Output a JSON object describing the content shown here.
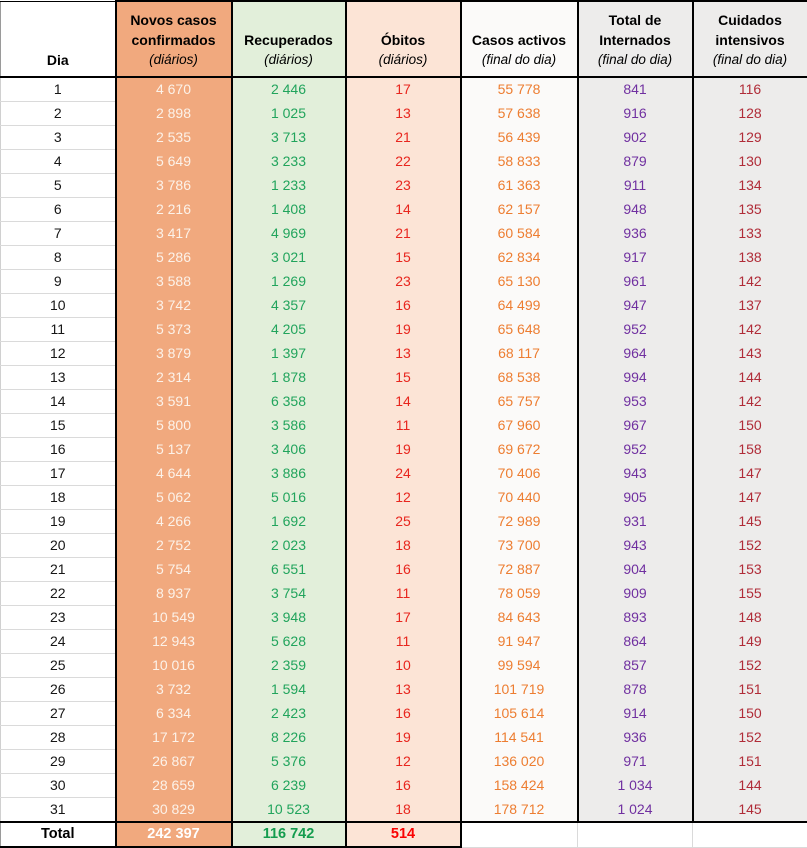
{
  "table": {
    "day_header": "Dia",
    "total_label": "Total",
    "columns": [
      {
        "title": "Novos casos confirmados",
        "subtitle": "(diários)"
      },
      {
        "title": "Recuperados",
        "subtitle": "(diários)"
      },
      {
        "title": "Óbitos",
        "subtitle": "(diários)"
      },
      {
        "title": "Casos activos",
        "subtitle": "(final do dia)"
      },
      {
        "title": "Total de Internados",
        "subtitle": "(final do dia)"
      },
      {
        "title": "Cuidados intensivos",
        "subtitle": "(final do dia)"
      }
    ]
  },
  "colors": {
    "new_cases_fill": "#F1A97E",
    "new_cases_text": "#FCF2E9",
    "recovered_fill": "#E2EFDA",
    "recovered_text": "#21A45C",
    "deaths_fill": "#FCE4D6",
    "deaths_text": "#E8261E",
    "deaths_total_text": "#FA0202",
    "active_cases_fill": "#FBFAF9",
    "active_cases_text": "#ED7D31",
    "hospitalized_fill": "#EDECEB",
    "hospitalized_text": "#7030A0",
    "icu_fill": "#EDECEB",
    "icu_text": "#B02C38",
    "border": "#000000",
    "gridline": "#DADADA"
  },
  "chart_data": {
    "type": "table",
    "columns": [
      "Dia",
      "Novos casos confirmados (diários)",
      "Recuperados (diários)",
      "Óbitos (diários)",
      "Casos activos (final do dia)",
      "Total de Internados (final do dia)",
      "Cuidados intensivos (final do dia)"
    ],
    "rows": [
      [
        1,
        4670,
        2446,
        17,
        55778,
        841,
        116
      ],
      [
        2,
        2898,
        1025,
        13,
        57638,
        916,
        128
      ],
      [
        3,
        2535,
        3713,
        21,
        56439,
        902,
        129
      ],
      [
        4,
        5649,
        3233,
        22,
        58833,
        879,
        130
      ],
      [
        5,
        3786,
        1233,
        23,
        61363,
        911,
        134
      ],
      [
        6,
        2216,
        1408,
        14,
        62157,
        948,
        135
      ],
      [
        7,
        3417,
        4969,
        21,
        60584,
        936,
        133
      ],
      [
        8,
        5286,
        3021,
        15,
        62834,
        917,
        138
      ],
      [
        9,
        3588,
        1269,
        23,
        65130,
        961,
        142
      ],
      [
        10,
        3742,
        4357,
        16,
        64499,
        947,
        137
      ],
      [
        11,
        5373,
        4205,
        19,
        65648,
        952,
        142
      ],
      [
        12,
        3879,
        1397,
        13,
        68117,
        964,
        143
      ],
      [
        13,
        2314,
        1878,
        15,
        68538,
        994,
        144
      ],
      [
        14,
        3591,
        6358,
        14,
        65757,
        953,
        142
      ],
      [
        15,
        5800,
        3586,
        11,
        67960,
        967,
        150
      ],
      [
        16,
        5137,
        3406,
        19,
        69672,
        952,
        158
      ],
      [
        17,
        4644,
        3886,
        24,
        70406,
        943,
        147
      ],
      [
        18,
        5062,
        5016,
        12,
        70440,
        905,
        147
      ],
      [
        19,
        4266,
        1692,
        25,
        72989,
        931,
        145
      ],
      [
        20,
        2752,
        2023,
        18,
        73700,
        943,
        152
      ],
      [
        21,
        5754,
        6551,
        16,
        72887,
        904,
        153
      ],
      [
        22,
        8937,
        3754,
        11,
        78059,
        909,
        155
      ],
      [
        23,
        10549,
        3948,
        17,
        84643,
        893,
        148
      ],
      [
        24,
        12943,
        5628,
        11,
        91947,
        864,
        149
      ],
      [
        25,
        10016,
        2359,
        10,
        99594,
        857,
        152
      ],
      [
        26,
        3732,
        1594,
        13,
        101719,
        878,
        151
      ],
      [
        27,
        6334,
        2423,
        16,
        105614,
        914,
        150
      ],
      [
        28,
        17172,
        8226,
        19,
        114541,
        936,
        152
      ],
      [
        29,
        26867,
        5376,
        12,
        136020,
        971,
        151
      ],
      [
        30,
        28659,
        6239,
        16,
        158424,
        1034,
        144
      ],
      [
        31,
        30829,
        10523,
        18,
        178712,
        1024,
        145
      ]
    ],
    "totals": [
      null,
      242397,
      116742,
      514,
      null,
      null,
      null
    ]
  }
}
